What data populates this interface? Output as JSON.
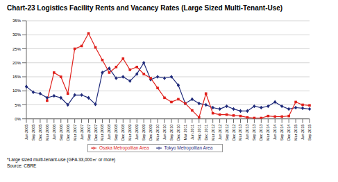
{
  "chart_data": {
    "type": "line",
    "title": "Chart-23 Logistics Facility Rents and Vacancy Rates (Large Sized Multi-Tenant-Use)",
    "categories": [
      "Jun 2005",
      "Sep 2005",
      "Dec 2005",
      "Mar 2006",
      "Jun 2006",
      "Sep 2006",
      "Dec 2006",
      "Mar 2007",
      "Jun 2007",
      "Sep 2007",
      "Dec 2007",
      "Mar 2008",
      "Jun 2008",
      "Sep 2008",
      "Dec 2008",
      "Mar 2009",
      "Jun 2009",
      "Sep 2009",
      "Dec 2009",
      "Mar 2010",
      "Jun 2010",
      "Sep 2010",
      "Dec 2010",
      "Mar 2011",
      "Jun 2011",
      "Sep 2011",
      "Dec 2011",
      "Mar 2012",
      "Jun 2012",
      "Sep 2012",
      "Dec 2012",
      "Mar 2013",
      "Jun 2013",
      "Sep 2013",
      "Dec 2013",
      "Mar 2014",
      "Jun 2014",
      "Sep 2014",
      "Dec 2014",
      "Mar 2015",
      "Jun 2015",
      "Sep 2015"
    ],
    "series": [
      {
        "name": "Tokyo Metropolitan Area",
        "color": "#1f2a7a",
        "marker": "diamond",
        "values": [
          11.5,
          9.5,
          9,
          7.5,
          8.2,
          7.5,
          5,
          8.5,
          8.5,
          7.5,
          5.2,
          16.5,
          18,
          14.5,
          15,
          13.5,
          16,
          20,
          14,
          15,
          14.5,
          15,
          12,
          5.5,
          7,
          5.5,
          5,
          4,
          3.5,
          4.5,
          3.5,
          2.8,
          2.8,
          4.5,
          4,
          4.5,
          6,
          4.5,
          3.5,
          4,
          3.8,
          3.5
        ]
      },
      {
        "name": "Osaka Metropolitan Area",
        "color": "#e0201b",
        "marker": "square",
        "values": [
          null,
          null,
          null,
          6.5,
          16.5,
          15,
          9,
          25,
          26,
          30.5,
          25.5,
          21,
          16.5,
          18.5,
          21.5,
          17.5,
          18.5,
          16,
          14.5,
          11,
          7.5,
          6,
          7,
          5.5,
          3,
          0.5,
          9,
          2,
          1.5,
          1.5,
          1.2,
          1,
          0.5,
          0.3,
          0.3,
          1,
          0.8,
          0.8,
          1,
          6,
          5,
          4.8
        ]
      }
    ],
    "ylim": [
      0,
      35
    ],
    "yticks": [
      {
        "value": 0,
        "label": "0%"
      },
      {
        "value": 5,
        "label": "5%"
      },
      {
        "value": 10,
        "label": "10%"
      },
      {
        "value": 15,
        "label": "15%"
      },
      {
        "value": 20,
        "label": "20%"
      },
      {
        "value": 25,
        "label": "25%"
      },
      {
        "value": 30,
        "label": "30%"
      },
      {
        "value": 35,
        "label": "35%"
      }
    ],
    "grid": true,
    "legend": "bottom",
    "footnotes": [
      "*Large sized multi-tenant-use (GFA 33,000㎡ or more)",
      "Source: CBRE"
    ]
  }
}
